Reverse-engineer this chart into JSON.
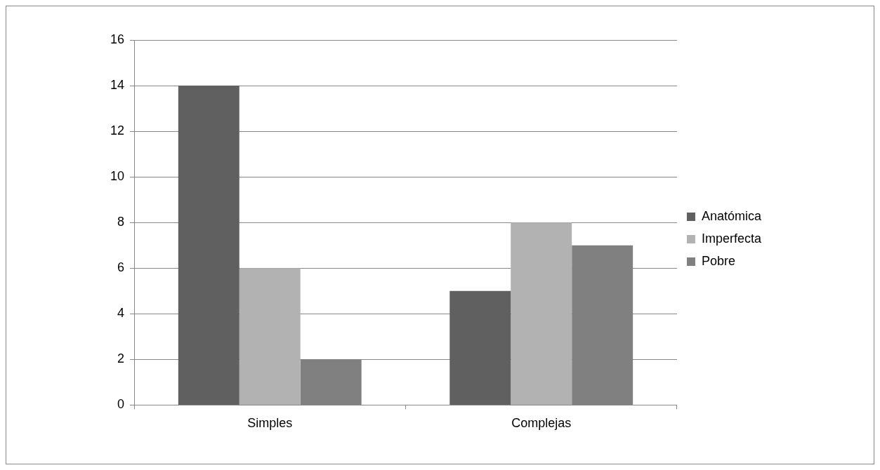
{
  "chart_data": {
    "type": "bar",
    "categories": [
      "Simples",
      "Complejas"
    ],
    "series": [
      {
        "name": "Anatómica",
        "color": "#606060",
        "values": [
          14,
          5
        ]
      },
      {
        "name": "Imperfecta",
        "color": "#b2b2b2",
        "values": [
          6,
          8
        ]
      },
      {
        "name": "Pobre",
        "color": "#808080",
        "values": [
          2,
          7
        ]
      }
    ],
    "ylim": [
      0,
      16
    ],
    "yticks": [
      0,
      2,
      4,
      6,
      8,
      10,
      12,
      14,
      16
    ],
    "grid": "y",
    "legend": "right"
  }
}
